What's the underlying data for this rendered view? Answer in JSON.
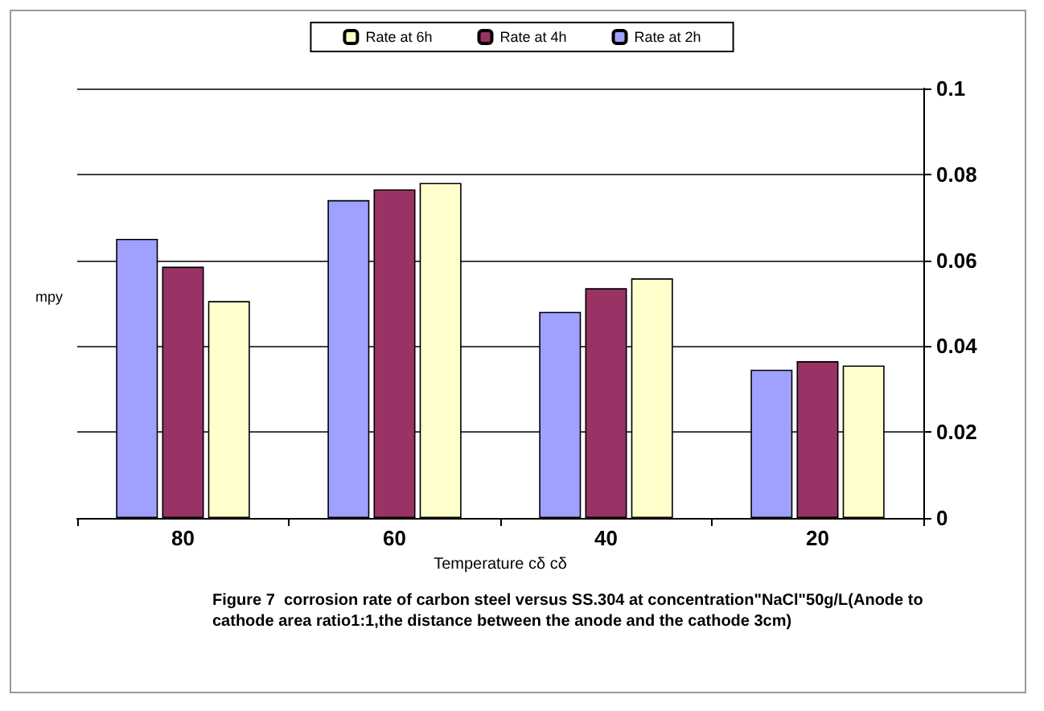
{
  "chart_data": {
    "type": "bar",
    "categories": [
      "80",
      "60",
      "40",
      "20"
    ],
    "series": [
      {
        "name": "Rate at 2h",
        "color": "#a0a0ff",
        "values": [
          0.065,
          0.074,
          0.048,
          0.0345
        ]
      },
      {
        "name": "Rate at 4h",
        "color": "#993366",
        "values": [
          0.0585,
          0.0765,
          0.0535,
          0.0365
        ]
      },
      {
        "name": "Rate at 6h",
        "color": "#ffffcc",
        "values": [
          0.0505,
          0.078,
          0.0558,
          0.0355
        ]
      }
    ],
    "xlabel": "Temperature cδ cδ",
    "ylabel": "mpy",
    "ylim": [
      0,
      0.1
    ],
    "yticks": [
      0,
      0.02,
      0.04,
      0.06,
      0.08,
      0.1
    ],
    "grid": "y",
    "legend": "top",
    "annotations": [
      "Figure 7  corrosion rate of carbon steel versus SS.304 at concentration\"NaCl\"50g/L(Anode to cathode area ratio1:1,the distance between the anode and the cathode 3cm)"
    ]
  }
}
